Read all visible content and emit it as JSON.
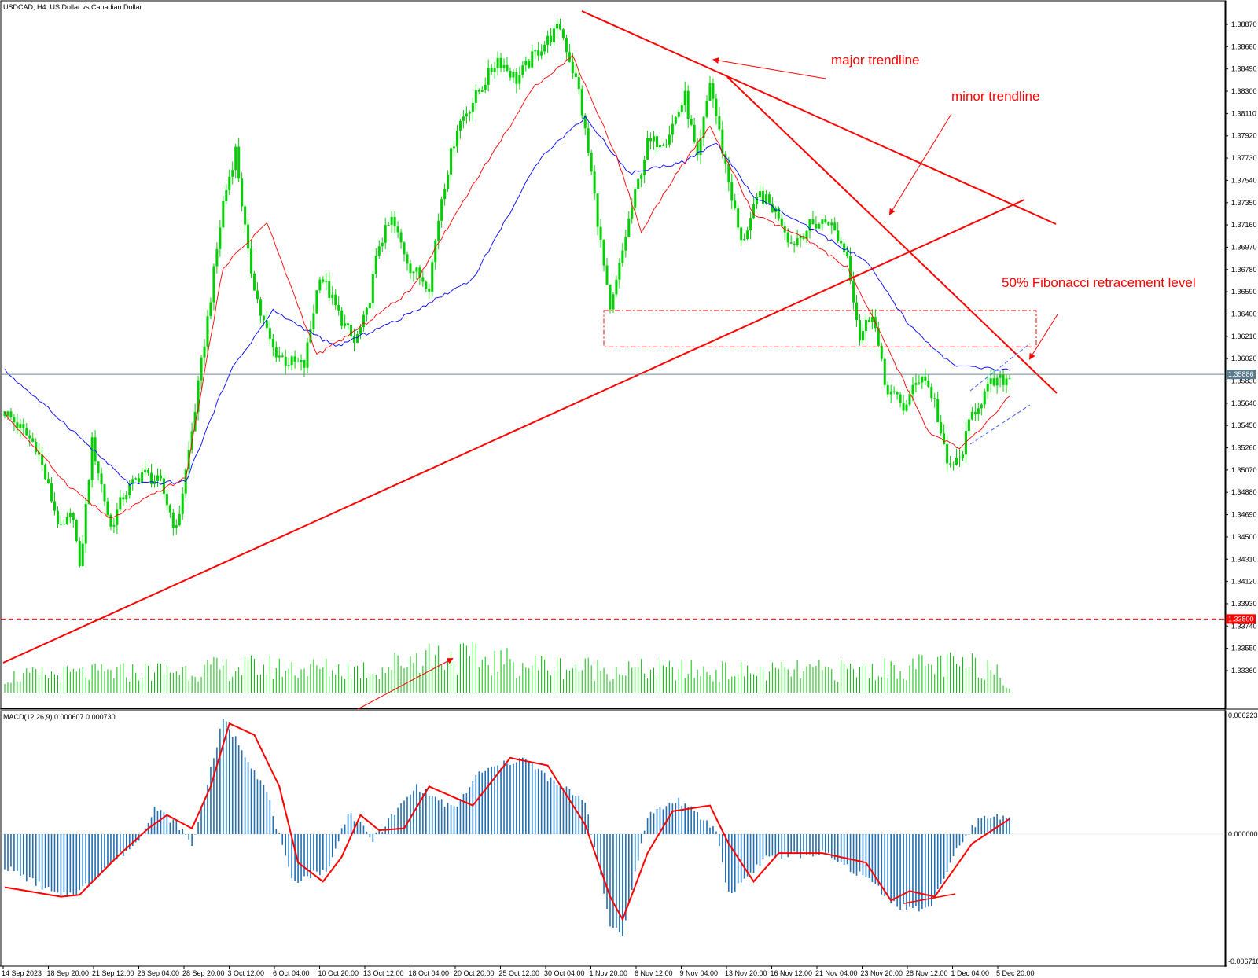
{
  "window": {
    "symbol_label": "USDCAD, H4:  US Dollar vs Canadian Dollar"
  },
  "colors": {
    "bull": "#00d000",
    "bear": "#00d000",
    "fast_ma": "#ff0000",
    "slow_ma": "#0000ff",
    "trendline": "#ff0000",
    "macd_hist": "#1f6fb2",
    "macd_signal": "#ff0000",
    "volume": "#00c000",
    "price_line": "#6b8a99",
    "price_tag": "#5a7a8a",
    "level_tag": "#ff0000"
  },
  "chart_data": [
    {
      "type": "candlestick",
      "title": "USDCAD, H4:  US Dollar vs Canadian Dollar",
      "xlabel": "",
      "ylabel": "",
      "ylim": [
        1.3325,
        1.3895
      ],
      "y_ticks": [
        "1.38870",
        "1.38680",
        "1.38490",
        "1.38300",
        "1.38110",
        "1.37920",
        "1.37730",
        "1.37540",
        "1.37350",
        "1.37160",
        "1.36970",
        "1.36780",
        "1.36590",
        "1.36400",
        "1.36210",
        "1.36020",
        "1.35830",
        "1.35640",
        "1.35450",
        "1.35260",
        "1.35070",
        "1.34880",
        "1.34690",
        "1.34500",
        "1.34310",
        "1.34120",
        "1.33930",
        "1.33740",
        "1.33550",
        "1.33360"
      ],
      "x_ticks": [
        "14 Sep 2023",
        "18 Sep 20:00",
        "21 Sep 12:00",
        "26 Sep 04:00",
        "28 Sep 20:00",
        "3 Oct 12:00",
        "6 Oct 04:00",
        "10 Oct 20:00",
        "13 Oct 12:00",
        "18 Oct 04:00",
        "20 Oct 20:00",
        "25 Oct 12:00",
        "30 Oct 04:00",
        "1 Nov 20:00",
        "6 Nov 12:00",
        "9 Nov 04:00",
        "13 Nov 20:00",
        "16 Nov 12:00",
        "21 Nov 04:00",
        "23 Nov 20:00",
        "28 Nov 12:00",
        "1 Dec 04:00",
        "5 Dec 20:00"
      ],
      "price_path_keypoints": [
        [
          0,
          1.3557
        ],
        [
          10,
          1.3528
        ],
        [
          18,
          1.3455
        ],
        [
          22,
          1.347
        ],
        [
          24,
          1.342
        ],
        [
          28,
          1.353
        ],
        [
          34,
          1.3458
        ],
        [
          38,
          1.3485
        ],
        [
          44,
          1.3505
        ],
        [
          50,
          1.3495
        ],
        [
          55,
          1.3455
        ],
        [
          60,
          1.354
        ],
        [
          66,
          1.3655
        ],
        [
          70,
          1.3735
        ],
        [
          74,
          1.378
        ],
        [
          78,
          1.369
        ],
        [
          82,
          1.364
        ],
        [
          86,
          1.361
        ],
        [
          90,
          1.36
        ],
        [
          96,
          1.3596
        ],
        [
          101,
          1.3675
        ],
        [
          107,
          1.364
        ],
        [
          112,
          1.3615
        ],
        [
          116,
          1.364
        ],
        [
          120,
          1.37
        ],
        [
          124,
          1.372
        ],
        [
          130,
          1.368
        ],
        [
          136,
          1.3665
        ],
        [
          140,
          1.374
        ],
        [
          145,
          1.38
        ],
        [
          152,
          1.383
        ],
        [
          158,
          1.3858
        ],
        [
          164,
          1.384
        ],
        [
          170,
          1.3862
        ],
        [
          178,
          1.3885
        ],
        [
          184,
          1.383
        ],
        [
          188,
          1.376
        ],
        [
          194,
          1.364
        ],
        [
          200,
          1.372
        ],
        [
          206,
          1.3785
        ],
        [
          212,
          1.379
        ],
        [
          218,
          1.3825
        ],
        [
          222,
          1.377
        ],
        [
          226,
          1.3838
        ],
        [
          230,
          1.378
        ],
        [
          236,
          1.37
        ],
        [
          242,
          1.3742
        ],
        [
          248,
          1.3725
        ],
        [
          252,
          1.37
        ],
        [
          258,
          1.3715
        ],
        [
          264,
          1.372
        ],
        [
          270,
          1.369
        ],
        [
          274,
          1.362
        ],
        [
          278,
          1.3643
        ],
        [
          282,
          1.358
        ],
        [
          288,
          1.356
        ],
        [
          294,
          1.359
        ],
        [
          298,
          1.3565
        ],
        [
          302,
          1.351
        ],
        [
          306,
          1.3515
        ],
        [
          310,
          1.3555
        ],
        [
          316,
          1.358
        ],
        [
          322,
          1.3586
        ]
      ],
      "fast_ma_keypoints": [
        [
          0,
          1.3555
        ],
        [
          20,
          1.3495
        ],
        [
          34,
          1.3465
        ],
        [
          50,
          1.349
        ],
        [
          58,
          1.35
        ],
        [
          70,
          1.368
        ],
        [
          84,
          1.3718
        ],
        [
          100,
          1.3605
        ],
        [
          112,
          1.3625
        ],
        [
          130,
          1.366
        ],
        [
          150,
          1.375
        ],
        [
          170,
          1.3835
        ],
        [
          182,
          1.386
        ],
        [
          196,
          1.3775
        ],
        [
          204,
          1.371
        ],
        [
          214,
          1.3755
        ],
        [
          226,
          1.38
        ],
        [
          240,
          1.3725
        ],
        [
          256,
          1.3705
        ],
        [
          270,
          1.368
        ],
        [
          284,
          1.3605
        ],
        [
          296,
          1.354
        ],
        [
          306,
          1.3525
        ],
        [
          314,
          1.3545
        ],
        [
          322,
          1.357
        ]
      ],
      "slow_ma_keypoints": [
        [
          0,
          1.3592
        ],
        [
          20,
          1.3545
        ],
        [
          40,
          1.3495
        ],
        [
          58,
          1.3497
        ],
        [
          72,
          1.359
        ],
        [
          86,
          1.3643
        ],
        [
          106,
          1.3612
        ],
        [
          126,
          1.3635
        ],
        [
          150,
          1.367
        ],
        [
          172,
          1.3775
        ],
        [
          186,
          1.3808
        ],
        [
          200,
          1.376
        ],
        [
          218,
          1.377
        ],
        [
          228,
          1.3786
        ],
        [
          240,
          1.374
        ],
        [
          260,
          1.371
        ],
        [
          276,
          1.3685
        ],
        [
          290,
          1.363
        ],
        [
          304,
          1.3596
        ],
        [
          322,
          1.3592
        ]
      ],
      "volume_keypoints": [
        [
          0,
          0.35
        ],
        [
          40,
          0.45
        ],
        [
          80,
          0.55
        ],
        [
          120,
          0.5
        ],
        [
          134,
          0.85
        ],
        [
          170,
          0.6
        ],
        [
          200,
          0.5
        ],
        [
          240,
          0.45
        ],
        [
          280,
          0.5
        ],
        [
          300,
          0.6
        ],
        [
          318,
          0.55
        ],
        [
          322,
          0.1
        ]
      ],
      "current_price": "1.35886",
      "support_level": "1.33800",
      "fib_zone": {
        "top": 1.3643,
        "bottom": 1.3612
      }
    },
    {
      "type": "bar",
      "title": "MACD(12,26,9) 0.000607 0.000730",
      "ylim": [
        -0.006718,
        0.006223
      ],
      "y_ticks": [
        "0.006223",
        "0.000000",
        "-0.006718"
      ],
      "histogram_keypoints": [
        [
          0,
          -0.0017
        ],
        [
          18,
          -0.0033
        ],
        [
          24,
          -0.003
        ],
        [
          34,
          -0.0015
        ],
        [
          42,
          -0.0005
        ],
        [
          48,
          0.0014
        ],
        [
          56,
          0.0004
        ],
        [
          60,
          -0.0006
        ],
        [
          70,
          0.006
        ],
        [
          76,
          0.0045
        ],
        [
          84,
          0.0022
        ],
        [
          92,
          -0.0025
        ],
        [
          104,
          -0.0018
        ],
        [
          110,
          0.0012
        ],
        [
          118,
          -0.0003
        ],
        [
          132,
          0.0025
        ],
        [
          144,
          0.0013
        ],
        [
          152,
          0.0032
        ],
        [
          166,
          0.004
        ],
        [
          176,
          0.0027
        ],
        [
          186,
          0.0018
        ],
        [
          194,
          -0.0048
        ],
        [
          198,
          -0.0052
        ],
        [
          206,
          0.001
        ],
        [
          216,
          0.0018
        ],
        [
          228,
          0.0002
        ],
        [
          232,
          -0.0032
        ],
        [
          244,
          -0.0012
        ],
        [
          262,
          -0.001
        ],
        [
          278,
          -0.0025
        ],
        [
          286,
          -0.0038
        ],
        [
          296,
          -0.004
        ],
        [
          304,
          -0.0012
        ],
        [
          312,
          0.0008
        ],
        [
          322,
          0.001
        ]
      ],
      "signal_keypoints": [
        [
          0,
          -0.0028
        ],
        [
          18,
          -0.0033
        ],
        [
          24,
          -0.0032
        ],
        [
          36,
          -0.0012
        ],
        [
          46,
          0.0003
        ],
        [
          52,
          0.001
        ],
        [
          60,
          0.0003
        ],
        [
          66,
          0.0025
        ],
        [
          72,
          0.0058
        ],
        [
          80,
          0.0052
        ],
        [
          88,
          0.0025
        ],
        [
          94,
          -0.0015
        ],
        [
          102,
          -0.0025
        ],
        [
          108,
          -0.0012
        ],
        [
          114,
          0.001
        ],
        [
          120,
          0.0002
        ],
        [
          128,
          0.0003
        ],
        [
          136,
          0.0025
        ],
        [
          150,
          0.0015
        ],
        [
          162,
          0.004
        ],
        [
          174,
          0.0036
        ],
        [
          186,
          0.0005
        ],
        [
          194,
          -0.0033
        ],
        [
          198,
          -0.0045
        ],
        [
          206,
          -0.001
        ],
        [
          214,
          0.0012
        ],
        [
          226,
          0.0015
        ],
        [
          232,
          -0.0005
        ],
        [
          240,
          -0.0025
        ],
        [
          248,
          -0.001
        ],
        [
          262,
          -0.001
        ],
        [
          276,
          -0.0015
        ],
        [
          284,
          -0.0035
        ],
        [
          290,
          -0.003
        ],
        [
          298,
          -0.0033
        ],
        [
          310,
          -0.0005
        ],
        [
          322,
          0.0008
        ]
      ]
    }
  ],
  "annotations": {
    "major_trendline_label": "major trendline",
    "minor_trendline_label": "minor trendline",
    "fib_label": "50% Fibonacci retracement level"
  }
}
